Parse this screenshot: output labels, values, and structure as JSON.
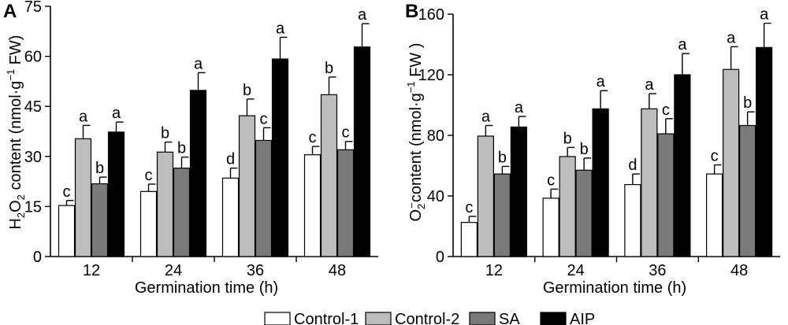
{
  "legend": [
    {
      "label": "Control-1",
      "color": "#ffffff"
    },
    {
      "label": "Control-2",
      "color": "#bdbdbd"
    },
    {
      "label": "SA",
      "color": "#7a7a7a"
    },
    {
      "label": "AIP",
      "color": "#000000"
    }
  ],
  "chart_data": [
    {
      "panel": "A",
      "type": "bar",
      "xlabel": "Germination time (h)",
      "ylabel_prefix": "H",
      "ylabel_sub1": "2",
      "ylabel_mid": "O",
      "ylabel_sub2": "2",
      "ylabel_rest": " content (nmol·g",
      "ylabel_sup": "−1",
      "ylabel_end": " FW)",
      "categories": [
        "12",
        "24",
        "36",
        "48"
      ],
      "ylim": [
        0,
        75
      ],
      "yticks": [
        "0",
        "15",
        "30",
        "45",
        "60",
        "75"
      ],
      "series": [
        {
          "name": "Control-1",
          "values": [
            15.3,
            19.5,
            23.5,
            30.5
          ],
          "errors": [
            1.5,
            2.2,
            3,
            2.5
          ],
          "letters": [
            "c",
            "c",
            "d",
            "c"
          ]
        },
        {
          "name": "Control-2",
          "values": [
            35.3,
            31.3,
            42.2,
            48.5
          ],
          "errors": [
            4,
            3,
            5,
            5.3
          ],
          "letters": [
            "a",
            "b",
            "b",
            "b"
          ]
        },
        {
          "name": "SA",
          "values": [
            21.8,
            26.5,
            34.8,
            32
          ],
          "errors": [
            2,
            3.3,
            3.8,
            2.5
          ],
          "letters": [
            "b",
            "b",
            "c",
            "c"
          ]
        },
        {
          "name": "AIP",
          "values": [
            37.3,
            49.8,
            59.2,
            62.8
          ],
          "errors": [
            3,
            5.3,
            6.5,
            7
          ],
          "letters": [
            "a",
            "a",
            "a",
            "a"
          ]
        }
      ]
    },
    {
      "panel": "B",
      "type": "bar",
      "xlabel": "Germination time (h)",
      "ylabel_prefix": "O",
      "ylabel_sub1": "2",
      "ylabel_sup1": "−",
      "ylabel_rest": "content (nmol·g",
      "ylabel_sup": "−1",
      "ylabel_end": " FW )",
      "categories": [
        "12",
        "24",
        "36",
        "48"
      ],
      "ylim": [
        0,
        160
      ],
      "yticks": [
        "0",
        "40",
        "80",
        "120",
        "160"
      ],
      "series": [
        {
          "name": "Control-1",
          "values": [
            22.5,
            38.5,
            47.5,
            54.5
          ],
          "errors": [
            4,
            6,
            7,
            6
          ],
          "letters": [
            "c",
            "c",
            "d",
            "c"
          ]
        },
        {
          "name": "Control-2",
          "values": [
            79.5,
            66,
            97.5,
            123.5
          ],
          "errors": [
            7,
            6,
            10,
            15
          ],
          "letters": [
            "a",
            "b",
            "a",
            "a"
          ]
        },
        {
          "name": "SA",
          "values": [
            54.5,
            57,
            81,
            86.5
          ],
          "errors": [
            5,
            8,
            10,
            9
          ],
          "letters": [
            "b",
            "b",
            "c",
            "b"
          ]
        },
        {
          "name": "AIP",
          "values": [
            85.5,
            97.5,
            120,
            138
          ],
          "errors": [
            7,
            12,
            14,
            16
          ],
          "letters": [
            "a",
            "a",
            "a",
            "a"
          ]
        }
      ]
    }
  ]
}
